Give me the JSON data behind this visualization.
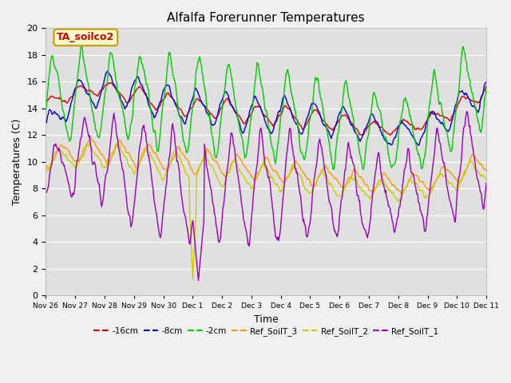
{
  "title": "Alfalfa Forerunner Temperatures",
  "xlabel": "Time",
  "ylabel": "Temperatures (C)",
  "annotation": "TA_soilco2",
  "ylim": [
    0,
    20
  ],
  "yticks": [
    0,
    2,
    4,
    6,
    8,
    10,
    12,
    14,
    16,
    18,
    20
  ],
  "plot_bg": "#e0e0e0",
  "fig_bg": "#f0f0f0",
  "series": [
    {
      "label": "-16cm",
      "color": "#dd0000"
    },
    {
      "label": "-8cm",
      "color": "#0000dd"
    },
    {
      "label": "-2cm",
      "color": "#00cc00"
    },
    {
      "label": "Ref_SoilT_3",
      "color": "#ff9900"
    },
    {
      "label": "Ref_SoilT_2",
      "color": "#cccc00"
    },
    {
      "label": "Ref_SoilT_1",
      "color": "#9900bb"
    }
  ],
  "xtick_labels": [
    "Nov 26",
    "Nov 27",
    "Nov 28",
    "Nov 29",
    "Nov 30",
    "Dec 1",
    "Dec 2",
    "Dec 3",
    "Dec 4",
    "Dec 5",
    "Dec 6",
    "Dec 7",
    "Dec 8",
    "Dec 9",
    "Dec 10",
    "Dec 11"
  ],
  "figsize": [
    6.4,
    4.8
  ],
  "dpi": 100
}
